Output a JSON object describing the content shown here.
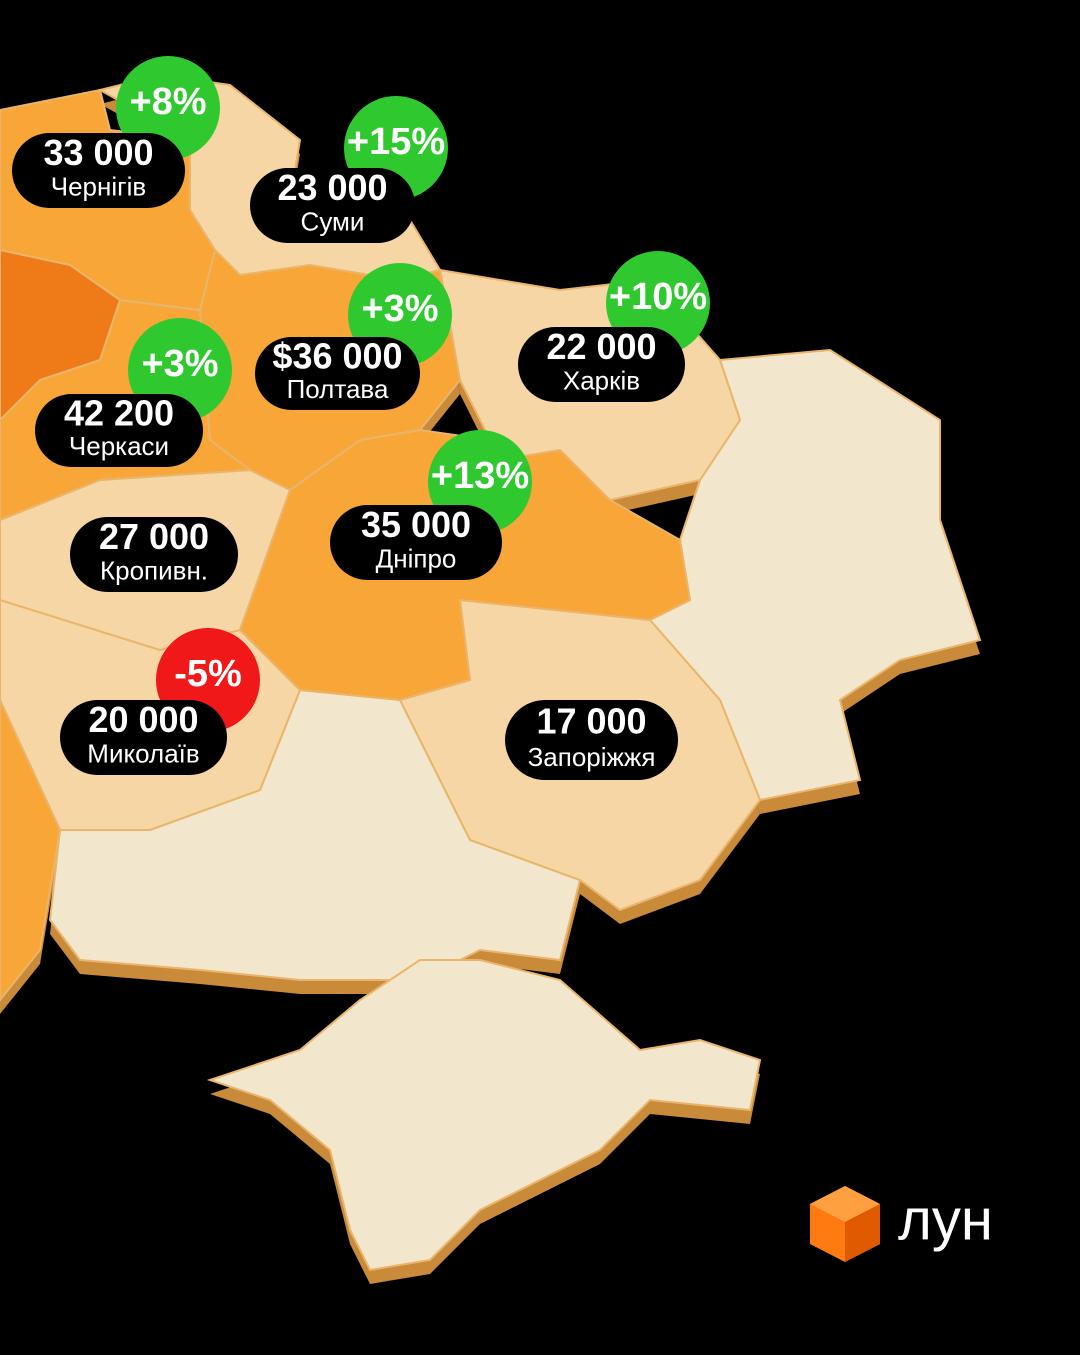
{
  "regions": [
    {
      "price": "33 000",
      "city": "Чернігів",
      "change": {
        "text": "+8%",
        "color": "#2fc92f"
      }
    },
    {
      "price": "23 000",
      "city": "Суми",
      "change": {
        "text": "+15%",
        "color": "#2fc92f"
      }
    },
    {
      "price": "$36 000",
      "city": "Полтава",
      "change": {
        "text": "+3%",
        "color": "#2fc92f"
      }
    },
    {
      "price": "22 000",
      "city": "Харків",
      "change": {
        "text": "+10%",
        "color": "#2fc92f"
      }
    },
    {
      "price": "42 200",
      "city": "Черкаси",
      "change": {
        "text": "+3%",
        "color": "#2fc92f"
      }
    },
    {
      "price": "35 000",
      "city": "Дніпро",
      "change": {
        "text": "+13%",
        "color": "#2fc92f"
      }
    },
    {
      "price": "27 000",
      "city": "Кропивн."
    },
    {
      "price": "20 000",
      "city": "Миколаїв",
      "change": {
        "text": "-5%",
        "color": "#f01818"
      }
    },
    {
      "price": "17 000",
      "city": "Запоріжжя"
    }
  ],
  "logo": "лун"
}
